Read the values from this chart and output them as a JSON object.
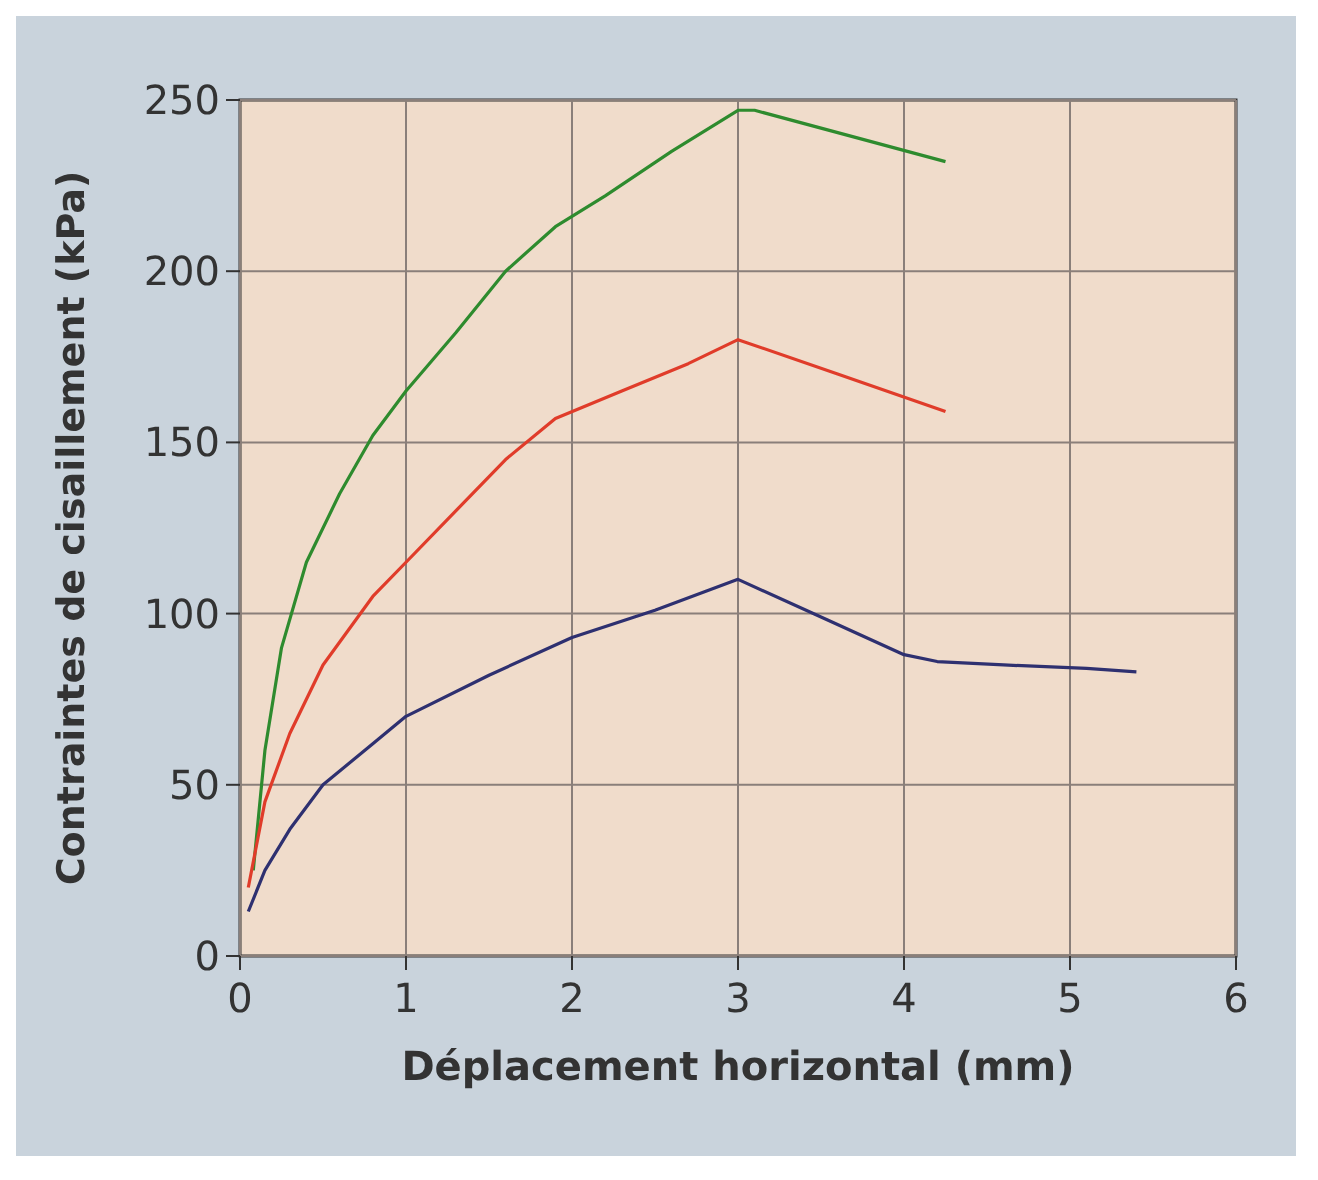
{
  "chart_data": {
    "type": "line",
    "xlabel": "Déplacement horizontal (mm)",
    "ylabel": "Contraintes de cisaillement (kPa)",
    "xlim": [
      0,
      6
    ],
    "xticks": [
      0,
      1,
      2,
      3,
      4,
      5,
      6
    ],
    "ylim": [
      0,
      250
    ],
    "yticks": [
      0,
      50,
      100,
      150,
      200,
      250
    ],
    "grid": true,
    "marker": "none",
    "line_style": "solid",
    "series": [
      {
        "color": "#2e8b2e",
        "x": [
          0.08,
          0.15,
          0.25,
          0.4,
          0.6,
          0.8,
          1,
          1.3,
          1.6,
          1.9,
          2.2,
          2.6,
          3.0,
          3.1,
          4.25
        ],
        "values": [
          25,
          60,
          90,
          115,
          135,
          152,
          165,
          182,
          200,
          213,
          222,
          235,
          247,
          247,
          232
        ]
      },
      {
        "color": "#e03c2a",
        "x": [
          0.05,
          0.15,
          0.3,
          0.5,
          0.8,
          1,
          1.3,
          1.6,
          1.9,
          2.3,
          2.7,
          3.0,
          3.6,
          4.25
        ],
        "values": [
          20,
          45,
          65,
          85,
          105,
          115,
          130,
          145,
          157,
          165,
          173,
          180,
          170,
          159
        ]
      },
      {
        "color": "#2e3070",
        "x": [
          0.05,
          0.15,
          0.3,
          0.5,
          0.8,
          1,
          1.5,
          2,
          2.5,
          3,
          3.5,
          4,
          4.2,
          4.6,
          5.1,
          5.4
        ],
        "values": [
          13,
          25,
          37,
          50,
          62,
          70,
          82,
          93,
          101,
          110,
          99,
          88,
          86,
          85,
          84,
          83
        ]
      }
    ]
  }
}
